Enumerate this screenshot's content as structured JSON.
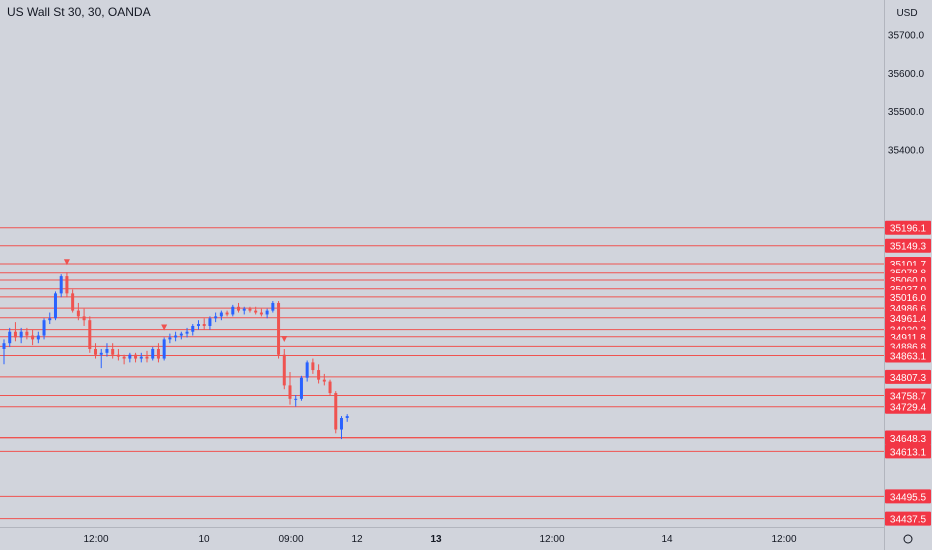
{
  "title": "US Wall St 30, 30, OANDA",
  "colors": {
    "background": "#d1d4dc",
    "panel": "#d1d4dc",
    "border": "#b2b5be",
    "text": "#131722",
    "bull": "#2962ff",
    "bear": "#ef5350",
    "level_line": "#ef5350",
    "label_bg": "#f23645",
    "label_text": "#ffffff"
  },
  "chart_data": {
    "type": "candlestick",
    "currency": "USD",
    "y_ticks": [
      "35700.0",
      "35600.0",
      "35500.0",
      "35400.0"
    ],
    "x_ticks": [
      "12:00",
      "10",
      "09:00",
      "12",
      "13",
      "12:00",
      "14",
      "12:00"
    ],
    "x_tick_bold": [
      false,
      false,
      false,
      false,
      true,
      false,
      false,
      false
    ],
    "level_labels": [
      "35196.1",
      "35149.3",
      "35101.7",
      "35078.8",
      "35060.0",
      "35037.0",
      "35016.0",
      "34986.6",
      "34961.4",
      "34930.3",
      "34911.8",
      "34886.8",
      "34863.1",
      "34807.3",
      "34758.7",
      "34729.4",
      "34649.0",
      "34648.3",
      "34613.1",
      "34495.5",
      "34437.5"
    ],
    "levels": [
      35196.1,
      35149.3,
      35101.7,
      35078.8,
      35060.0,
      35037.0,
      35016.0,
      34986.6,
      34961.4,
      34930.3,
      34911.8,
      34886.8,
      34863.1,
      34807.3,
      34758.7,
      34729.4,
      34649.0,
      34648.3,
      34613.1,
      34495.5,
      34437.5
    ],
    "candles": [
      [
        34880,
        34905,
        34840,
        34895
      ],
      [
        34895,
        34935,
        34885,
        34925
      ],
      [
        34925,
        34950,
        34900,
        34910
      ],
      [
        34910,
        34935,
        34895,
        34925
      ],
      [
        34925,
        34935,
        34905,
        34915
      ],
      [
        34915,
        34930,
        34890,
        34905
      ],
      [
        34905,
        34925,
        34895,
        34915
      ],
      [
        34915,
        34960,
        34905,
        34955
      ],
      [
        34955,
        34975,
        34945,
        34960
      ],
      [
        34960,
        35030,
        34955,
        35025
      ],
      [
        35025,
        35075,
        35015,
        35070
      ],
      [
        35070,
        35080,
        35015,
        35025
      ],
      [
        35025,
        35035,
        34975,
        34980
      ],
      [
        34980,
        35000,
        34955,
        34965
      ],
      [
        34965,
        34985,
        34940,
        34955
      ],
      [
        34955,
        34965,
        34870,
        34880
      ],
      [
        34880,
        34895,
        34855,
        34865
      ],
      [
        34865,
        34880,
        34830,
        34870
      ],
      [
        34870,
        34895,
        34860,
        34880
      ],
      [
        34880,
        34895,
        34855,
        34865
      ],
      [
        34865,
        34880,
        34850,
        34860
      ],
      [
        34860,
        34865,
        34840,
        34855
      ],
      [
        34855,
        34870,
        34845,
        34865
      ],
      [
        34865,
        34870,
        34845,
        34855
      ],
      [
        34855,
        34870,
        34845,
        34860
      ],
      [
        34860,
        34875,
        34845,
        34855
      ],
      [
        34855,
        34885,
        34850,
        34880
      ],
      [
        34880,
        34895,
        34845,
        34855
      ],
      [
        34855,
        34910,
        34850,
        34905
      ],
      [
        34905,
        34920,
        34895,
        34910
      ],
      [
        34910,
        34925,
        34900,
        34915
      ],
      [
        34915,
        34925,
        34905,
        34920
      ],
      [
        34920,
        34935,
        34910,
        34925
      ],
      [
        34925,
        34945,
        34915,
        34940
      ],
      [
        34940,
        34955,
        34930,
        34945
      ],
      [
        34945,
        34960,
        34930,
        34940
      ],
      [
        34940,
        34965,
        34930,
        34960
      ],
      [
        34960,
        34975,
        34950,
        34965
      ],
      [
        34965,
        34980,
        34955,
        34975
      ],
      [
        34975,
        34980,
        34965,
        34970
      ],
      [
        34970,
        34995,
        34965,
        34990
      ],
      [
        34990,
        35000,
        34975,
        34980
      ],
      [
        34980,
        34990,
        34970,
        34985
      ],
      [
        34985,
        34990,
        34975,
        34980
      ],
      [
        34980,
        34990,
        34970,
        34975
      ],
      [
        34975,
        34985,
        34965,
        34970
      ],
      [
        34970,
        34985,
        34960,
        34980
      ],
      [
        34980,
        35005,
        34975,
        35000
      ],
      [
        35000,
        35005,
        34855,
        34865
      ],
      [
        34865,
        34880,
        34775,
        34785
      ],
      [
        34785,
        34820,
        34735,
        34750
      ],
      [
        34750,
        34760,
        34730,
        34750
      ],
      [
        34750,
        34810,
        34745,
        34805
      ],
      [
        34805,
        34850,
        34795,
        34845
      ],
      [
        34845,
        34855,
        34815,
        34825
      ],
      [
        34825,
        34840,
        34790,
        34800
      ],
      [
        34800,
        34815,
        34785,
        34795
      ],
      [
        34795,
        34800,
        34760,
        34765
      ],
      [
        34765,
        34770,
        34660,
        34670
      ],
      [
        34670,
        34705,
        34645,
        34700
      ],
      [
        34700,
        34710,
        34690,
        34705
      ]
    ]
  }
}
